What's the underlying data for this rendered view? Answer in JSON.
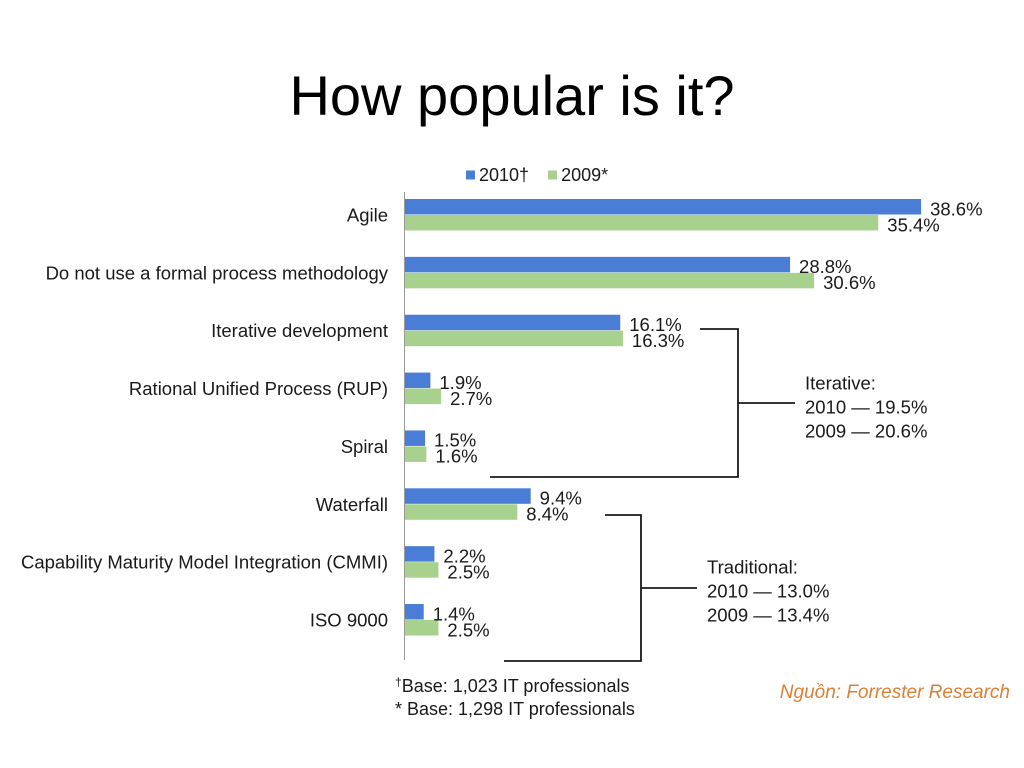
{
  "title": "How popular is it?",
  "chart_data": {
    "type": "bar",
    "orientation": "horizontal",
    "categories": [
      "Agile",
      "Do not use a formal process methodology",
      "Iterative development",
      "Rational Unified Process (RUP)",
      "Spiral",
      "Waterfall",
      "Capability Maturity Model Integration (CMMI)",
      "ISO 9000"
    ],
    "series": [
      {
        "name": "2010†",
        "color": "#4a7dd6",
        "values": [
          38.6,
          28.8,
          16.1,
          1.9,
          1.5,
          9.4,
          2.2,
          1.4
        ],
        "labels": [
          "38.6%",
          "28.8%",
          "16.1%",
          "1.9%",
          "1.5%",
          "9.4%",
          "2.2%",
          "1.4%"
        ]
      },
      {
        "name": "2009*",
        "color": "#a8d18d",
        "values": [
          35.4,
          30.6,
          16.3,
          2.7,
          1.6,
          8.4,
          2.5,
          2.5
        ],
        "labels": [
          "35.4%",
          "30.6%",
          "16.3%",
          "2.7%",
          "1.6%",
          "8.4%",
          "2.5%",
          "2.5%"
        ]
      }
    ],
    "grid": false,
    "legend_position": "top",
    "annotations": [
      {
        "label": "Iterative:",
        "lines": [
          "2010 — 19.5%",
          "2009 — 20.6%"
        ],
        "first_category": 2,
        "last_category": 4
      },
      {
        "label": "Traditional:",
        "lines": [
          "2010 — 13.0%",
          "2009 — 13.4%"
        ],
        "first_category": 5,
        "last_category": 7
      }
    ]
  },
  "footnotes": [
    {
      "marker": "†",
      "text": "Base: 1,023 IT professionals"
    },
    {
      "marker": "*",
      "text": "Base: 1,298 IT professionals"
    }
  ],
  "source": "Nguồn: Forrester Research",
  "colors": {
    "source_text": "#dd7f35",
    "bracket_line": "#1a1a1a",
    "axis_line": "#9a9a9a"
  }
}
